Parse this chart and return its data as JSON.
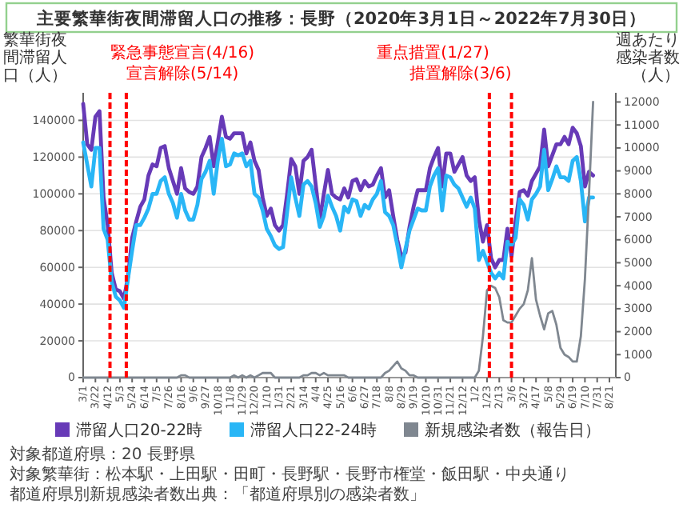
{
  "chart_data": {
    "type": "line",
    "title": "主要繁華街夜間滞留人口の推移：長野（2020年3月1日～2022年7月30日）",
    "ylabel": "繁華街夜間滞留人口（人）",
    "y2label": "週あたり感染者数（人）",
    "x": [
      "2020-03-01",
      "2020-03-08",
      "2020-03-15",
      "2020-03-22",
      "2020-03-29",
      "2020-04-05",
      "2020-04-12",
      "2020-04-19",
      "2020-04-26",
      "2020-05-03",
      "2020-05-10",
      "2020-05-17",
      "2020-05-24",
      "2020-05-31",
      "2020-06-07",
      "2020-06-14",
      "2020-06-21",
      "2020-06-28",
      "2020-07-05",
      "2020-07-12",
      "2020-07-19",
      "2020-07-26",
      "2020-08-02",
      "2020-08-09",
      "2020-08-16",
      "2020-08-23",
      "2020-08-30",
      "2020-09-06",
      "2020-09-13",
      "2020-09-20",
      "2020-09-27",
      "2020-10-04",
      "2020-10-11",
      "2020-10-18",
      "2020-10-25",
      "2020-11-01",
      "2020-11-08",
      "2020-11-15",
      "2020-11-22",
      "2020-11-29",
      "2020-12-06",
      "2020-12-13",
      "2020-12-20",
      "2020-12-27",
      "2021-01-03",
      "2021-01-10",
      "2021-01-17",
      "2021-01-24",
      "2021-01-31",
      "2021-02-07",
      "2021-02-14",
      "2021-02-21",
      "2021-02-28",
      "2021-03-07",
      "2021-03-14",
      "2021-03-21",
      "2021-03-28",
      "2021-04-04",
      "2021-04-11",
      "2021-04-18",
      "2021-04-25",
      "2021-05-02",
      "2021-05-09",
      "2021-05-16",
      "2021-05-23",
      "2021-05-30",
      "2021-06-06",
      "2021-06-13",
      "2021-06-20",
      "2021-06-27",
      "2021-07-04",
      "2021-07-11",
      "2021-07-18",
      "2021-07-25",
      "2021-08-01",
      "2021-08-08",
      "2021-08-15",
      "2021-08-22",
      "2021-08-29",
      "2021-09-05",
      "2021-09-12",
      "2021-09-19",
      "2021-09-26",
      "2021-10-03",
      "2021-10-10",
      "2021-10-17",
      "2021-10-24",
      "2021-10-31",
      "2021-11-07",
      "2021-11-14",
      "2021-11-21",
      "2021-11-28",
      "2021-12-05",
      "2021-12-12",
      "2021-12-19",
      "2021-12-26",
      "2022-01-02",
      "2022-01-09",
      "2022-01-16",
      "2022-01-23",
      "2022-01-30",
      "2022-02-06",
      "2022-02-13",
      "2022-02-20",
      "2022-02-27",
      "2022-03-06",
      "2022-03-13",
      "2022-03-20",
      "2022-03-27",
      "2022-04-03",
      "2022-04-10",
      "2022-04-17",
      "2022-04-24",
      "2022-05-01",
      "2022-05-08",
      "2022-05-15",
      "2022-05-22",
      "2022-05-29",
      "2022-06-05",
      "2022-06-12",
      "2022-06-19",
      "2022-06-26",
      "2022-07-03",
      "2022-07-10",
      "2022-07-17",
      "2022-07-24"
    ],
    "series": [
      {
        "name": "滞留人口20-22時",
        "color": "#673ab7",
        "values": [
          149000,
          127000,
          124000,
          142000,
          145000,
          98000,
          83000,
          57000,
          48000,
          47000,
          43000,
          55000,
          76000,
          85000,
          93000,
          97000,
          110000,
          116000,
          115000,
          125000,
          126000,
          114000,
          107000,
          100000,
          114000,
          103000,
          101000,
          100000,
          104000,
          120000,
          125000,
          131000,
          115000,
          128000,
          142000,
          131000,
          130000,
          133000,
          133000,
          133000,
          122000,
          128000,
          118000,
          113000,
          98000,
          88000,
          92000,
          83000,
          80000,
          83000,
          100000,
          119000,
          115000,
          100000,
          118000,
          120000,
          124000,
          105000,
          86000,
          100000,
          113000,
          100000,
          98000,
          97000,
          103000,
          98000,
          107000,
          108000,
          102000,
          107000,
          104000,
          105000,
          110000,
          114000,
          98000,
          102000,
          88000,
          75000,
          66000,
          68000,
          82000,
          93000,
          102000,
          102000,
          102000,
          114000,
          120000,
          125000,
          104000,
          122000,
          122000,
          112000,
          116000,
          120000,
          110000,
          107000,
          109000,
          86000,
          74000,
          83000,
          65000,
          60000,
          64000,
          64000,
          81000,
          66000,
          85000,
          101000,
          102000,
          99000,
          107000,
          111000,
          115000,
          135000,
          115000,
          121000,
          127000,
          127000,
          131000,
          127000,
          136000,
          133000,
          126000,
          104000,
          112000,
          110000
        ]
      },
      {
        "name": "滞留人口22-24時",
        "color": "#29b6f6",
        "values": [
          128000,
          116000,
          104000,
          125000,
          125000,
          81000,
          75000,
          52000,
          44000,
          42000,
          38000,
          54000,
          69000,
          83000,
          83000,
          87000,
          92000,
          100000,
          100000,
          107000,
          109000,
          100000,
          95000,
          87000,
          100000,
          91000,
          86000,
          86000,
          94000,
          108000,
          112000,
          118000,
          100000,
          118000,
          130000,
          115000,
          116000,
          122000,
          121000,
          122000,
          115000,
          118000,
          100000,
          98000,
          91000,
          81000,
          77000,
          72000,
          70000,
          71000,
          90000,
          109000,
          98000,
          88000,
          105000,
          107000,
          104000,
          95000,
          82000,
          88000,
          99000,
          93000,
          88000,
          80000,
          93000,
          90000,
          97000,
          96000,
          88000,
          94000,
          92000,
          97000,
          100000,
          107000,
          90000,
          88000,
          83000,
          72000,
          60000,
          70000,
          80000,
          86000,
          92000,
          91000,
          91000,
          104000,
          110000,
          114000,
          91000,
          110000,
          109000,
          105000,
          103000,
          98000,
          93000,
          98000,
          92000,
          64000,
          69000,
          63000,
          57000,
          54000,
          57000,
          54000,
          74000,
          72000,
          76000,
          97000,
          94000,
          86000,
          97000,
          100000,
          104000,
          124000,
          102000,
          108000,
          115000,
          109000,
          109000,
          107000,
          118000,
          120000,
          107000,
          85000,
          98000,
          98000
        ]
      },
      {
        "name": "新規感染者数（報告日）",
        "color": "#7f8790",
        "axis": "y2",
        "values": [
          0,
          0,
          0,
          0,
          0,
          0,
          0,
          0,
          0,
          0,
          0,
          0,
          0,
          0,
          0,
          0,
          0,
          0,
          0,
          0,
          0,
          0,
          0,
          0,
          100,
          100,
          0,
          0,
          0,
          0,
          0,
          0,
          0,
          0,
          0,
          0,
          0,
          100,
          0,
          100,
          0,
          100,
          0,
          100,
          200,
          200,
          200,
          0,
          0,
          0,
          0,
          0,
          0,
          0,
          100,
          100,
          200,
          200,
          100,
          200,
          100,
          100,
          100,
          100,
          100,
          0,
          0,
          0,
          0,
          0,
          0,
          0,
          0,
          0,
          200,
          300,
          500,
          700,
          400,
          300,
          100,
          100,
          0,
          0,
          0,
          0,
          0,
          0,
          0,
          0,
          0,
          0,
          0,
          0,
          0,
          0,
          0,
          300,
          1800,
          3800,
          4000,
          3900,
          3500,
          2500,
          2400,
          2400,
          2700,
          3000,
          3200,
          3800,
          5200,
          3400,
          2700,
          2100,
          2800,
          2900,
          2300,
          1300,
          1000,
          900,
          700,
          700,
          1800,
          4300,
          8000,
          12000
        ]
      }
    ],
    "xlim": [
      "2020-03-01",
      "2022-09-01"
    ],
    "xticks": [
      {
        "value": "2020-03-01",
        "label": "3/1"
      },
      {
        "value": "2020-03-22",
        "label": "3/22"
      },
      {
        "value": "2020-04-12",
        "label": "4/12"
      },
      {
        "value": "2020-05-03",
        "label": "5/3"
      },
      {
        "value": "2020-05-24",
        "label": "5/24"
      },
      {
        "value": "2020-06-14",
        "label": "6/14"
      },
      {
        "value": "2020-07-05",
        "label": "7/5"
      },
      {
        "value": "2020-07-26",
        "label": "7/26"
      },
      {
        "value": "2020-08-16",
        "label": "8/16"
      },
      {
        "value": "2020-09-06",
        "label": "9/6"
      },
      {
        "value": "2020-09-27",
        "label": "9/27"
      },
      {
        "value": "2020-10-18",
        "label": "10/18"
      },
      {
        "value": "2020-11-08",
        "label": "11/8"
      },
      {
        "value": "2020-11-29",
        "label": "11/29"
      },
      {
        "value": "2020-12-20",
        "label": "12/20"
      },
      {
        "value": "2021-01-10",
        "label": "1/10"
      },
      {
        "value": "2021-01-31",
        "label": "1/31"
      },
      {
        "value": "2021-02-21",
        "label": "2/21"
      },
      {
        "value": "2021-03-14",
        "label": "3/14"
      },
      {
        "value": "2021-04-04",
        "label": "4/4"
      },
      {
        "value": "2021-04-25",
        "label": "4/25"
      },
      {
        "value": "2021-05-16",
        "label": "5/16"
      },
      {
        "value": "2021-06-06",
        "label": "6/6"
      },
      {
        "value": "2021-06-27",
        "label": "6/27"
      },
      {
        "value": "2021-07-18",
        "label": "7/18"
      },
      {
        "value": "2021-08-08",
        "label": "8/8"
      },
      {
        "value": "2021-08-29",
        "label": "8/29"
      },
      {
        "value": "2021-09-19",
        "label": "9/19"
      },
      {
        "value": "2021-10-10",
        "label": "10/10"
      },
      {
        "value": "2021-10-31",
        "label": "10/31"
      },
      {
        "value": "2021-11-21",
        "label": "11/21"
      },
      {
        "value": "2021-12-12",
        "label": "12/12"
      },
      {
        "value": "2022-01-02",
        "label": "1/2"
      },
      {
        "value": "2022-01-23",
        "label": "1/23"
      },
      {
        "value": "2022-02-13",
        "label": "2/13"
      },
      {
        "value": "2022-03-06",
        "label": "3/6"
      },
      {
        "value": "2022-03-27",
        "label": "3/27"
      },
      {
        "value": "2022-04-17",
        "label": "4/17"
      },
      {
        "value": "2022-05-08",
        "label": "5/8"
      },
      {
        "value": "2022-05-29",
        "label": "5/29"
      },
      {
        "value": "2022-06-19",
        "label": "6/19"
      },
      {
        "value": "2022-07-10",
        "label": "7/10"
      },
      {
        "value": "2022-07-31",
        "label": "7/31"
      },
      {
        "value": "2022-08-21",
        "label": "8/21"
      }
    ],
    "ylim": [
      0,
      155000
    ],
    "yticks": [
      0,
      20000,
      40000,
      60000,
      80000,
      100000,
      120000,
      140000
    ],
    "y2lim": [
      0,
      12400
    ],
    "y2ticks": [
      0,
      1000,
      2000,
      3000,
      4000,
      5000,
      6000,
      7000,
      8000,
      9000,
      10000,
      11000,
      12000
    ],
    "ref_lines": [
      {
        "axis": "x",
        "value": "2020-04-16",
        "label": "緊急事態宣言(4/16)",
        "color": "#ff0000",
        "line_style": "dashed"
      },
      {
        "axis": "x",
        "value": "2020-05-14",
        "label": "宣言解除(5/14)",
        "color": "#ff0000",
        "line_style": "dashed"
      },
      {
        "axis": "x",
        "value": "2022-01-27",
        "label": "重点措置(1/27)",
        "color": "#ff0000",
        "line_style": "dashed"
      },
      {
        "axis": "x",
        "value": "2022-03-06",
        "label": "措置解除(3/6)",
        "color": "#ff0000",
        "line_style": "dashed"
      }
    ],
    "grid": "y",
    "legend": "bottom",
    "line_style": "solid",
    "annotations": [
      "対象都道府県：20 長野県",
      "対象繁華街：松本駅・上田駅・田町・長野駅・長野市権堂・飯田駅・中央通り",
      "都道府県別新規感染者数出典：「都道府県別の感染者数」"
    ]
  }
}
